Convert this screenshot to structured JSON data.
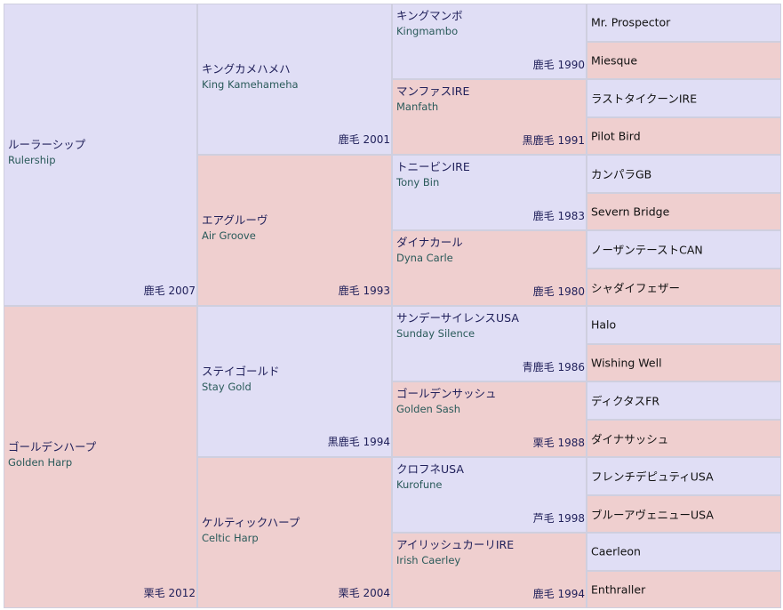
{
  "gen1": [
    {
      "ja": "ルーラーシップ",
      "en": "Rulership",
      "info": "鹿毛 2007",
      "side": "sire"
    },
    {
      "ja": "ゴールデンハープ",
      "en": "Golden Harp",
      "info": "栗毛 2012",
      "side": "dam"
    }
  ],
  "gen2": [
    {
      "ja": "キングカメハメハ",
      "en": "King Kamehameha",
      "info": "鹿毛 2001",
      "side": "sire"
    },
    {
      "ja": "エアグルーヴ",
      "en": "Air Groove",
      "info": "鹿毛 1993",
      "side": "dam"
    },
    {
      "ja": "ステイゴールド",
      "en": "Stay Gold",
      "info": "黒鹿毛 1994",
      "side": "sire"
    },
    {
      "ja": "ケルティックハープ",
      "en": "Celtic Harp",
      "info": "栗毛 2004",
      "side": "dam"
    }
  ],
  "gen3": [
    {
      "ja": "キングマンボ",
      "en": "Kingmambo",
      "info": "鹿毛 1990",
      "side": "sire"
    },
    {
      "ja": "マンファスIRE",
      "en": "Manfath",
      "info": "黒鹿毛 1991",
      "side": "dam"
    },
    {
      "ja": "トニービンIRE",
      "en": "Tony Bin",
      "info": "鹿毛 1983",
      "side": "sire"
    },
    {
      "ja": "ダイナカール",
      "en": "Dyna Carle",
      "info": "鹿毛 1980",
      "side": "dam"
    },
    {
      "ja": "サンデーサイレンスUSA",
      "en": "Sunday Silence",
      "info": "青鹿毛 1986",
      "side": "sire"
    },
    {
      "ja": "ゴールデンサッシュ",
      "en": "Golden Sash",
      "info": "栗毛 1988",
      "side": "dam"
    },
    {
      "ja": "クロフネUSA",
      "en": "Kurofune",
      "info": "芦毛 1998",
      "side": "sire"
    },
    {
      "ja": "アイリッシュカーリIRE",
      "en": "Irish Caerley",
      "info": "鹿毛 1994",
      "side": "dam"
    }
  ],
  "gen4": [
    {
      "name": "Mr. Prospector",
      "side": "sire"
    },
    {
      "name": "Miesque",
      "side": "dam"
    },
    {
      "name": "ラストタイクーンIRE",
      "side": "sire"
    },
    {
      "name": "Pilot Bird",
      "side": "dam"
    },
    {
      "name": "カンパラGB",
      "side": "sire"
    },
    {
      "name": "Severn Bridge",
      "side": "dam"
    },
    {
      "name": "ノーザンテーストCAN",
      "side": "sire"
    },
    {
      "name": "シャダイフェザー",
      "side": "dam"
    },
    {
      "name": "Halo",
      "side": "sire"
    },
    {
      "name": "Wishing Well",
      "side": "dam"
    },
    {
      "name": "ディクタスFR",
      "side": "sire"
    },
    {
      "name": "ダイナサッシュ",
      "side": "dam"
    },
    {
      "name": "フレンチデピュティUSA",
      "side": "sire"
    },
    {
      "name": "ブルーアヴェニューUSA",
      "side": "dam"
    },
    {
      "name": "Caerleon",
      "side": "sire"
    },
    {
      "name": "Enthraller",
      "side": "dam"
    }
  ]
}
